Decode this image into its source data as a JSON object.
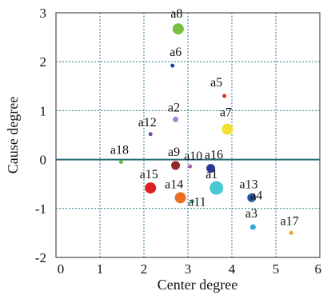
{
  "chart_data": {
    "type": "scatter",
    "title": "",
    "xlabel": "Center degree",
    "ylabel": "Cause degree",
    "xlim": [
      0,
      6
    ],
    "ylim": [
      -2,
      3
    ],
    "xticks": [
      "0",
      "1",
      "2",
      "3",
      "4",
      "5",
      "6"
    ],
    "yticks": [
      "-2",
      "-1",
      "0",
      "1",
      "2",
      "3"
    ],
    "grid": true,
    "points": [
      {
        "label": "a1",
        "x": 3.65,
        "y": -0.58,
        "color": "#48c8d0",
        "size": "xl"
      },
      {
        "label": "a2",
        "x": 2.72,
        "y": 0.82,
        "color": "#9a88c8",
        "size": "s"
      },
      {
        "label": "a3",
        "x": 4.48,
        "y": -1.38,
        "color": "#38a8d8",
        "size": "s"
      },
      {
        "label": "a4",
        "x": 4.45,
        "y": -0.78,
        "color": "#3060a0",
        "size": "m"
      },
      {
        "label": "a5",
        "x": 3.83,
        "y": 1.3,
        "color": "#e82828",
        "size": "xs"
      },
      {
        "label": "a6",
        "x": 2.65,
        "y": 1.92,
        "color": "#2838a8",
        "size": "xs"
      },
      {
        "label": "a7",
        "x": 3.9,
        "y": 0.62,
        "color": "#f0e030",
        "size": "l"
      },
      {
        "label": "a8",
        "x": 2.78,
        "y": 2.67,
        "color": "#78c040",
        "size": "l"
      },
      {
        "label": "a9",
        "x": 2.72,
        "y": -0.12,
        "color": "#902828",
        "size": "m"
      },
      {
        "label": "a10",
        "x": 3.05,
        "y": -0.14,
        "color": "#b060b0",
        "size": "xs"
      },
      {
        "label": "a11",
        "x": 3.1,
        "y": -0.85,
        "color": "#30b0a0",
        "size": "xs"
      },
      {
        "label": "a12",
        "x": 2.15,
        "y": 0.52,
        "color": "#7050a0",
        "size": "xs"
      },
      {
        "label": "a13",
        "x": 4.42,
        "y": -0.78,
        "color": "#2050a0",
        "size": "s"
      },
      {
        "label": "a14",
        "x": 2.83,
        "y": -0.78,
        "color": "#e87020",
        "size": "l"
      },
      {
        "label": "a15",
        "x": 2.15,
        "y": -0.58,
        "color": "#e02020",
        "size": "l"
      },
      {
        "label": "a16",
        "x": 3.52,
        "y": -0.18,
        "color": "#283898",
        "size": "m"
      },
      {
        "label": "a17",
        "x": 5.35,
        "y": -1.5,
        "color": "#f0a030",
        "size": "xs"
      },
      {
        "label": "a18",
        "x": 1.48,
        "y": -0.05,
        "color": "#60c040",
        "size": "xs"
      }
    ]
  }
}
